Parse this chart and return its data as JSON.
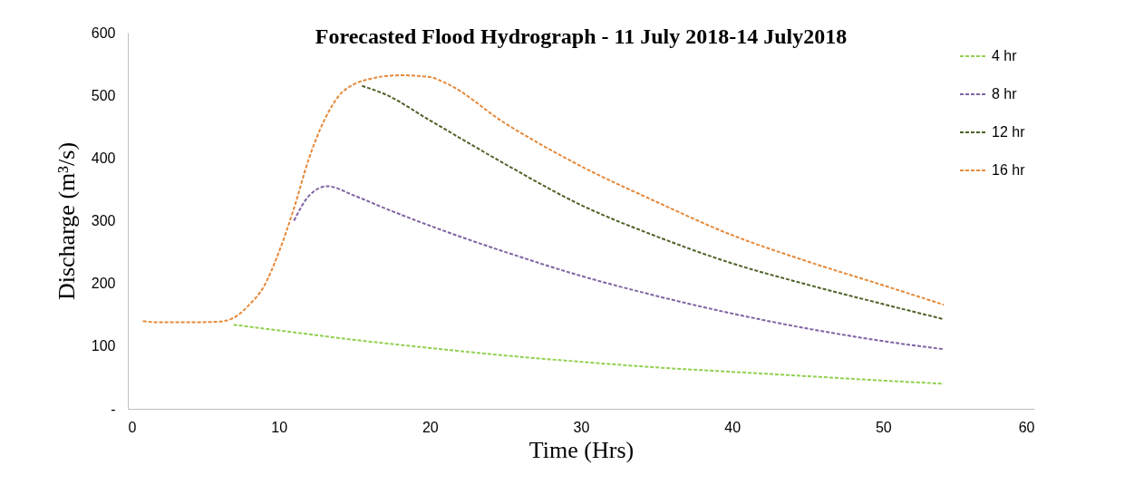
{
  "chart_data": {
    "type": "line",
    "title": "Forecasted Flood Hydrograph - 11 July 2018-14 July2018",
    "xlabel": "Time (Hrs)",
    "ylabel": "Discharge (m³/s)",
    "xlim": [
      0,
      60
    ],
    "xticks": [
      0,
      10,
      20,
      30,
      40,
      50,
      60
    ],
    "ylim": [
      0,
      600
    ],
    "yticks": [
      {
        "value": 0,
        "label": "-"
      },
      100,
      200,
      300,
      400,
      500,
      600
    ],
    "grid": false,
    "legend": "top right",
    "marker": "none",
    "line_style": "dashed",
    "series": [
      {
        "name": "4 hr",
        "color": "#92d050",
        "x": [
          7,
          8,
          10,
          15,
          20,
          25,
          30,
          35,
          40,
          45,
          50,
          54
        ],
        "values": [
          134,
          131,
          125,
          110,
          97,
          85,
          75,
          66,
          59,
          52,
          45,
          40
        ]
      },
      {
        "name": "8 hr",
        "color": "#8064a2",
        "x": [
          11,
          12,
          13.2,
          15,
          17,
          20,
          25,
          30,
          35,
          40,
          45,
          50,
          54
        ],
        "values": [
          300,
          340,
          355,
          340,
          320,
          292,
          250,
          212,
          180,
          152,
          128,
          108,
          95
        ]
      },
      {
        "name": "12 hr",
        "color": "#4f6228",
        "x": [
          15.5,
          17,
          20,
          25,
          30,
          35,
          40,
          45,
          50,
          54
        ],
        "values": [
          515,
          502,
          460,
          390,
          325,
          275,
          232,
          198,
          167,
          143
        ]
      },
      {
        "name": "16 hr",
        "color": "#e6893a",
        "x": [
          1,
          2,
          4,
          6,
          7,
          8,
          9,
          10,
          11,
          12,
          13,
          14,
          15,
          16,
          18,
          20,
          21,
          25,
          30,
          35,
          40,
          45,
          50,
          54
        ],
        "values": [
          140,
          138,
          138,
          139,
          145,
          165,
          195,
          250,
          320,
          400,
          460,
          500,
          518,
          526,
          532,
          529,
          520,
          455,
          387,
          330,
          277,
          235,
          197,
          166
        ]
      }
    ]
  }
}
